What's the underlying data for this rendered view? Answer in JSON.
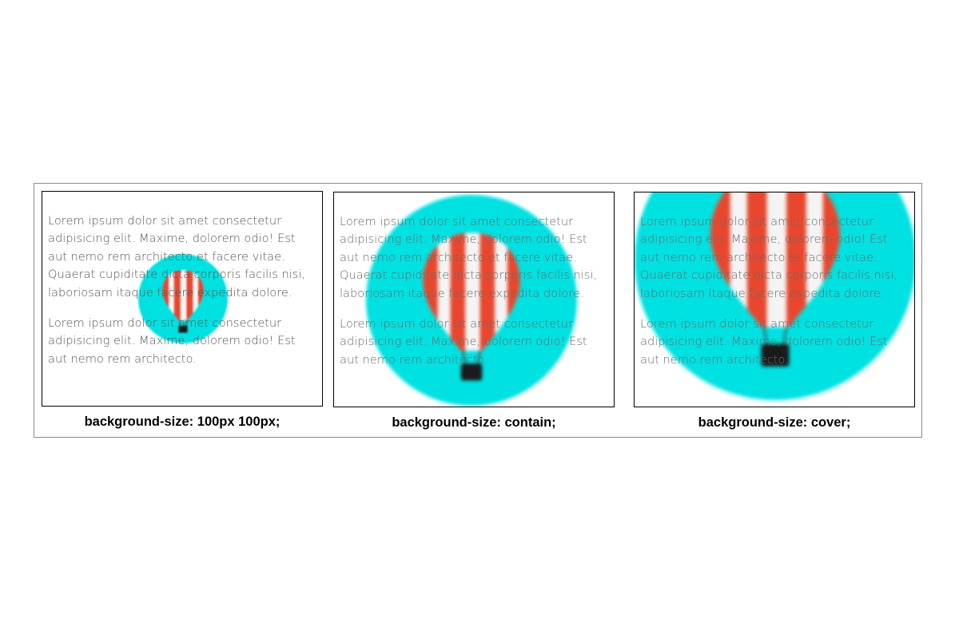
{
  "demos": [
    {
      "paragraphs": [
        "Lorem ipsum dolor sit amet consectetur adipisicing elit. Maxime, dolorem odio! Est aut nemo rem architecto et facere vitae. Quaerat cupiditate dicta corporis facilis nisi, laboriosam itaque facere expedita dolore.",
        "Lorem ipsum dolor sit amet consectetur adipisicing elit. Maxime, dolorem odio! Est aut nemo rem architecto."
      ],
      "caption": "background-size: 100px 100px;"
    },
    {
      "paragraphs": [
        "Lorem ipsum dolor sit amet consectetur adipisicing elit. Maxime, dolorem odio! Est aut nemo rem architecto et facere vitae. Quaerat cupiditate dicta corporis facilis nisi, laboriosam itaque facere expedita dolore.",
        "Lorem ipsum dolor sit amet consectetur adipisicing elit. Maxime, dolorem odio! Est aut nemo rem architecto."
      ],
      "caption": "background-size: contain;"
    },
    {
      "paragraphs": [
        "Lorem ipsum dolor sit amet consectetur adipisicing elit. Maxime, dolorem odio! Est aut nemo rem architecto et facere vitae. Quaerat cupiditate dicta corporis facilis nisi, laboriosam itaque facere expedita dolore.",
        "Lorem ipsum dolor sit amet consectetur adipisicing elit. Maxime, dolorem odio! Est aut nemo rem architecto."
      ],
      "caption": "background-size: cover;"
    }
  ],
  "colors": {
    "circle": "#00e1e1",
    "stripe_red": "#e8472e",
    "stripe_white": "#f4f4f4",
    "basket": "#1a1a1a",
    "border": "#000000",
    "frame_border": "#8a8a8a"
  }
}
